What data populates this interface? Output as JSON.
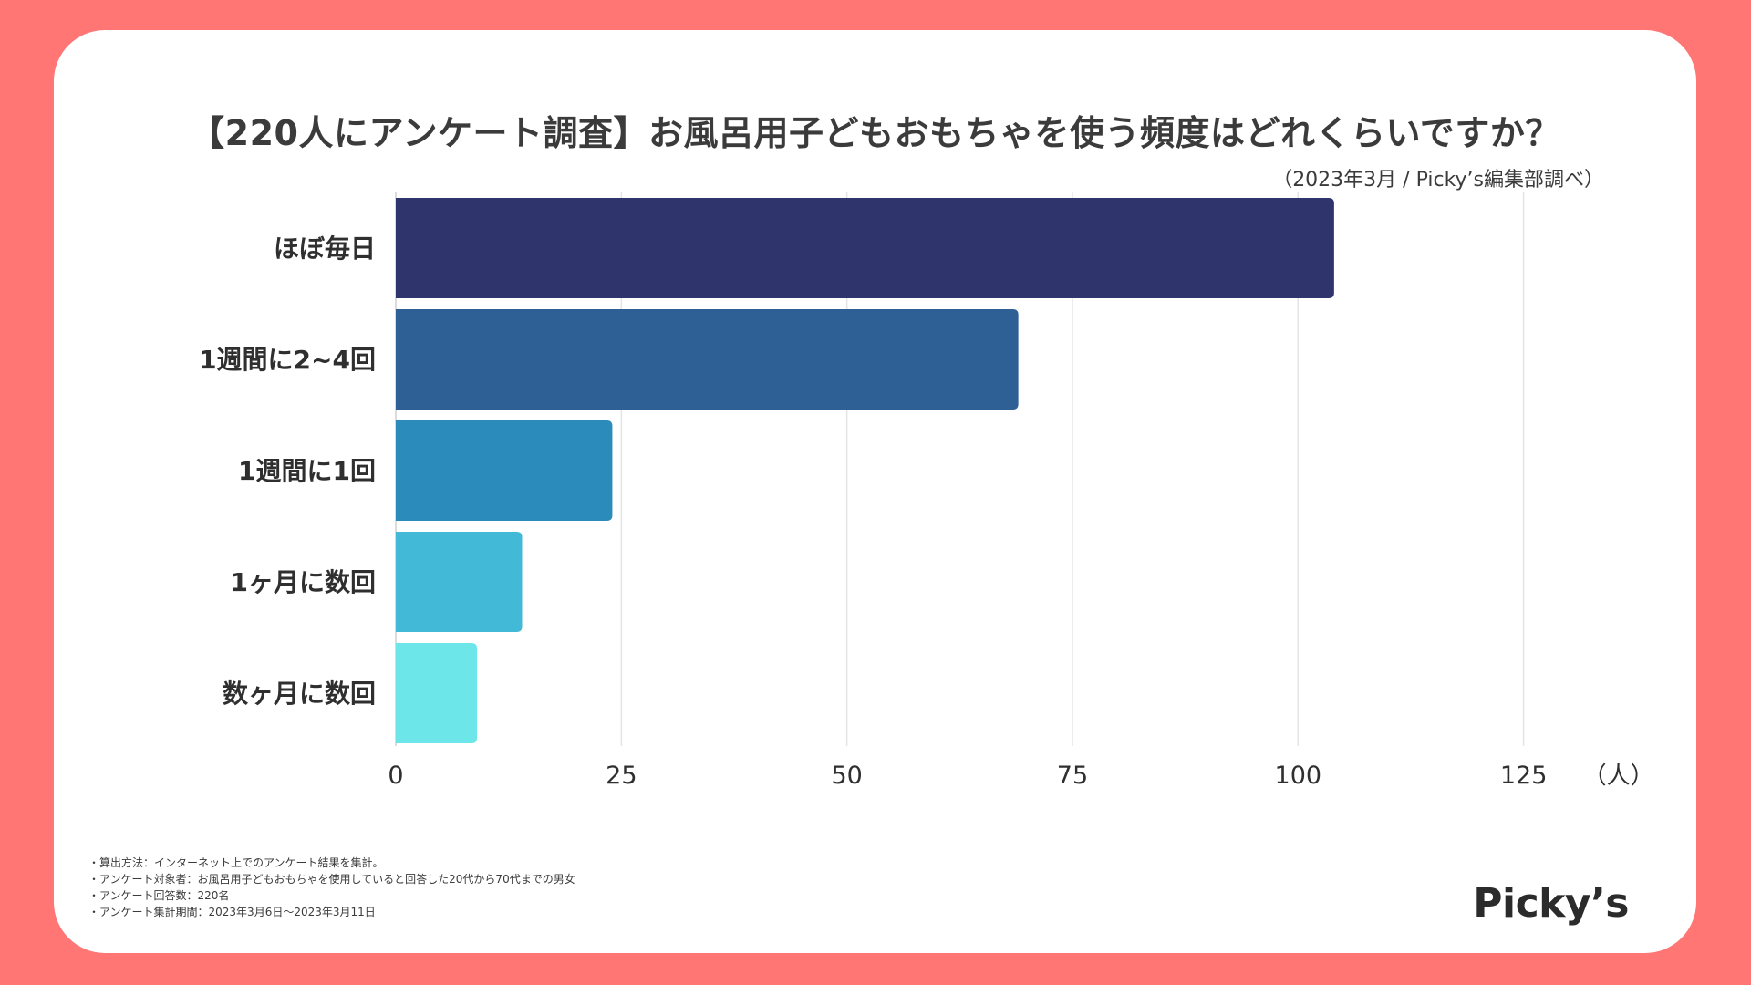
{
  "header": {
    "title": "【220人にアンケート調査】お風呂用子どもおもちゃを使う頻度はどれくらいですか？",
    "subtitle": "（2023年3月 / Picky’s編集部調べ）"
  },
  "chart_data": {
    "type": "bar",
    "orientation": "horizontal",
    "categories": [
      "ほぼ毎日",
      "1週間に2~4回",
      "1週間に1回",
      "1ヶ月に数回",
      "数ヶ月に数回"
    ],
    "values": [
      104,
      69,
      24,
      14,
      9
    ],
    "colors": [
      "#30346c",
      "#2e6096",
      "#2b8cbb",
      "#42b9d6",
      "#6ce6e9"
    ],
    "xlim": [
      0,
      125
    ],
    "xticks": [
      0,
      25,
      50,
      75,
      100,
      125
    ],
    "xlabel": "（人）",
    "grid": true,
    "grid_color": "#e4e4e4"
  },
  "notes": [
    "・算出方法：インターネット上でのアンケート結果を集計。",
    "・アンケート対象者：お風呂用子どもおもちゃを使用していると回答した20代から70代までの男女",
    "・アンケート回答数：220名",
    "・アンケート集計期間：2023年3月6日〜2023年3月11日"
  ],
  "brand": {
    "logo_text": "Picky’s",
    "background_color": "#ff7674"
  }
}
